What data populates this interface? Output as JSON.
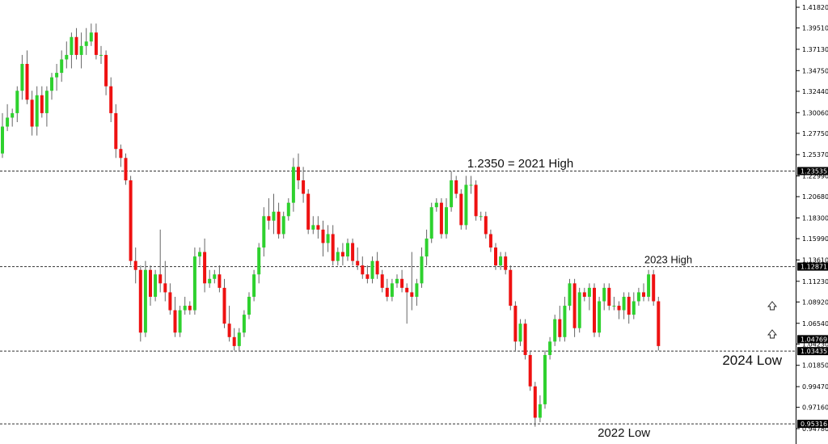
{
  "chart_data": {
    "type": "candlestick",
    "y_ticks": [
      "1.41820",
      "1.39510",
      "1.37130",
      "1.34750",
      "1.32440",
      "1.30060",
      "1.27750",
      "1.25370",
      "1.22990",
      "1.20680",
      "1.18300",
      "1.15990",
      "1.13610",
      "1.11230",
      "1.08920",
      "1.06540",
      "1.04230",
      "1.01850",
      "0.99470",
      "0.97160",
      "0.94780"
    ],
    "ylim": [
      0.9478,
      1.4182
    ],
    "levels": [
      {
        "value": 1.23535,
        "label": "1.23535"
      },
      {
        "value": 1.12871,
        "label": "1.12871"
      },
      {
        "value": 1.03435,
        "label": "1.03435"
      },
      {
        "value": 0.95316,
        "label": "0.95316"
      }
    ],
    "current_price": {
      "value": 1.04769,
      "label": "1.04769"
    },
    "annotations": [
      {
        "text": "1.2350 = 2021 High",
        "price": 1.235,
        "bar": 105
      },
      {
        "text": "2023 High",
        "price": 1.1287,
        "bar": 135
      },
      {
        "text": "2024 Low",
        "price": 1.0344,
        "bar": 152
      },
      {
        "text": "2022 Low",
        "price": 0.9532,
        "bar": 126
      }
    ],
    "colors": {
      "up": "#2ed12e",
      "down": "#ee1111",
      "wick": "#666666",
      "level": "#333333"
    },
    "bars": [
      [
        1.255,
        1.3,
        1.25,
        1.285
      ],
      [
        1.285,
        1.31,
        1.28,
        1.295
      ],
      [
        1.295,
        1.305,
        1.285,
        1.3
      ],
      [
        1.3,
        1.33,
        1.29,
        1.325
      ],
      [
        1.325,
        1.365,
        1.315,
        1.355
      ],
      [
        1.355,
        1.37,
        1.31,
        1.315
      ],
      [
        1.315,
        1.325,
        1.275,
        1.285
      ],
      [
        1.285,
        1.33,
        1.275,
        1.32
      ],
      [
        1.32,
        1.33,
        1.295,
        1.3
      ],
      [
        1.3,
        1.33,
        1.285,
        1.325
      ],
      [
        1.325,
        1.345,
        1.315,
        1.34
      ],
      [
        1.34,
        1.355,
        1.325,
        1.345
      ],
      [
        1.345,
        1.37,
        1.335,
        1.36
      ],
      [
        1.36,
        1.38,
        1.35,
        1.365
      ],
      [
        1.365,
        1.39,
        1.35,
        1.385
      ],
      [
        1.385,
        1.395,
        1.36,
        1.365
      ],
      [
        1.365,
        1.39,
        1.35,
        1.375
      ],
      [
        1.375,
        1.395,
        1.365,
        1.38
      ],
      [
        1.38,
        1.4,
        1.375,
        1.39
      ],
      [
        1.39,
        1.4,
        1.36,
        1.365
      ],
      [
        1.365,
        1.375,
        1.355,
        1.365
      ],
      [
        1.365,
        1.37,
        1.32,
        1.33
      ],
      [
        1.33,
        1.34,
        1.29,
        1.3
      ],
      [
        1.3,
        1.31,
        1.25,
        1.26
      ],
      [
        1.26,
        1.265,
        1.24,
        1.25
      ],
      [
        1.25,
        1.255,
        1.22,
        1.225
      ],
      [
        1.225,
        1.23,
        1.13,
        1.135
      ],
      [
        1.135,
        1.15,
        1.11,
        1.125
      ],
      [
        1.125,
        1.13,
        1.045,
        1.055
      ],
      [
        1.055,
        1.135,
        1.05,
        1.125
      ],
      [
        1.125,
        1.13,
        1.085,
        1.095
      ],
      [
        1.095,
        1.125,
        1.09,
        1.12
      ],
      [
        1.12,
        1.17,
        1.1,
        1.11
      ],
      [
        1.11,
        1.135,
        1.09,
        1.1
      ],
      [
        1.1,
        1.11,
        1.075,
        1.08
      ],
      [
        1.08,
        1.095,
        1.05,
        1.055
      ],
      [
        1.055,
        1.085,
        1.05,
        1.08
      ],
      [
        1.08,
        1.095,
        1.075,
        1.085
      ],
      [
        1.085,
        1.09,
        1.075,
        1.08
      ],
      [
        1.08,
        1.15,
        1.075,
        1.14
      ],
      [
        1.14,
        1.15,
        1.13,
        1.145
      ],
      [
        1.145,
        1.16,
        1.1,
        1.11
      ],
      [
        1.11,
        1.125,
        1.105,
        1.115
      ],
      [
        1.115,
        1.125,
        1.11,
        1.12
      ],
      [
        1.12,
        1.13,
        1.1,
        1.105
      ],
      [
        1.105,
        1.115,
        1.06,
        1.065
      ],
      [
        1.065,
        1.085,
        1.045,
        1.05
      ],
      [
        1.05,
        1.06,
        1.035,
        1.04
      ],
      [
        1.04,
        1.06,
        1.035,
        1.055
      ],
      [
        1.055,
        1.08,
        1.05,
        1.075
      ],
      [
        1.075,
        1.1,
        1.07,
        1.095
      ],
      [
        1.095,
        1.125,
        1.09,
        1.12
      ],
      [
        1.12,
        1.155,
        1.11,
        1.15
      ],
      [
        1.15,
        1.195,
        1.14,
        1.185
      ],
      [
        1.185,
        1.205,
        1.17,
        1.18
      ],
      [
        1.18,
        1.21,
        1.165,
        1.19
      ],
      [
        1.19,
        1.2,
        1.16,
        1.165
      ],
      [
        1.165,
        1.19,
        1.16,
        1.185
      ],
      [
        1.185,
        1.205,
        1.18,
        1.2
      ],
      [
        1.2,
        1.25,
        1.19,
        1.24
      ],
      [
        1.24,
        1.255,
        1.215,
        1.225
      ],
      [
        1.225,
        1.24,
        1.2,
        1.21
      ],
      [
        1.21,
        1.215,
        1.165,
        1.17
      ],
      [
        1.17,
        1.185,
        1.165,
        1.175
      ],
      [
        1.175,
        1.185,
        1.16,
        1.17
      ],
      [
        1.17,
        1.18,
        1.14,
        1.155
      ],
      [
        1.155,
        1.175,
        1.145,
        1.165
      ],
      [
        1.165,
        1.175,
        1.13,
        1.135
      ],
      [
        1.135,
        1.15,
        1.13,
        1.145
      ],
      [
        1.145,
        1.155,
        1.13,
        1.14
      ],
      [
        1.14,
        1.16,
        1.135,
        1.155
      ],
      [
        1.155,
        1.16,
        1.13,
        1.135
      ],
      [
        1.135,
        1.15,
        1.125,
        1.13
      ],
      [
        1.13,
        1.14,
        1.115,
        1.12
      ],
      [
        1.12,
        1.13,
        1.11,
        1.115
      ],
      [
        1.115,
        1.14,
        1.11,
        1.135
      ],
      [
        1.135,
        1.145,
        1.115,
        1.12
      ],
      [
        1.12,
        1.125,
        1.1,
        1.105
      ],
      [
        1.105,
        1.115,
        1.09,
        1.095
      ],
      [
        1.095,
        1.115,
        1.09,
        1.11
      ],
      [
        1.11,
        1.12,
        1.105,
        1.115
      ],
      [
        1.115,
        1.125,
        1.1,
        1.105
      ],
      [
        1.105,
        1.11,
        1.065,
        1.1
      ],
      [
        1.1,
        1.145,
        1.08,
        1.095
      ],
      [
        1.095,
        1.115,
        1.085,
        1.11
      ],
      [
        1.11,
        1.15,
        1.105,
        1.14
      ],
      [
        1.14,
        1.17,
        1.13,
        1.16
      ],
      [
        1.16,
        1.2,
        1.155,
        1.195
      ],
      [
        1.195,
        1.205,
        1.19,
        1.2
      ],
      [
        1.2,
        1.205,
        1.16,
        1.165
      ],
      [
        1.165,
        1.205,
        1.16,
        1.195
      ],
      [
        1.195,
        1.235,
        1.19,
        1.225
      ],
      [
        1.225,
        1.23,
        1.205,
        1.21
      ],
      [
        1.21,
        1.215,
        1.17,
        1.175
      ],
      [
        1.175,
        1.23,
        1.17,
        1.22
      ],
      [
        1.22,
        1.23,
        1.21,
        1.22
      ],
      [
        1.22,
        1.225,
        1.18,
        1.185
      ],
      [
        1.185,
        1.19,
        1.18,
        1.185
      ],
      [
        1.185,
        1.19,
        1.16,
        1.165
      ],
      [
        1.165,
        1.17,
        1.145,
        1.15
      ],
      [
        1.15,
        1.155,
        1.125,
        1.13
      ],
      [
        1.13,
        1.145,
        1.125,
        1.14
      ],
      [
        1.14,
        1.145,
        1.12,
        1.125
      ],
      [
        1.125,
        1.13,
        1.08,
        1.085
      ],
      [
        1.085,
        1.09,
        1.035,
        1.045
      ],
      [
        1.045,
        1.07,
        1.04,
        1.065
      ],
      [
        1.065,
        1.07,
        1.025,
        1.03
      ],
      [
        1.03,
        1.035,
        0.99,
        0.995
      ],
      [
        0.995,
        1.0,
        0.95,
        0.96
      ],
      [
        0.96,
        0.985,
        0.955,
        0.975
      ],
      [
        0.975,
        1.035,
        0.97,
        1.03
      ],
      [
        1.03,
        1.05,
        1.025,
        1.045
      ],
      [
        1.045,
        1.075,
        1.04,
        1.07
      ],
      [
        1.07,
        1.085,
        1.045,
        1.05
      ],
      [
        1.05,
        1.095,
        1.045,
        1.085
      ],
      [
        1.085,
        1.115,
        1.08,
        1.11
      ],
      [
        1.11,
        1.115,
        1.05,
        1.06
      ],
      [
        1.06,
        1.105,
        1.055,
        1.1
      ],
      [
        1.1,
        1.105,
        1.09,
        1.095
      ],
      [
        1.095,
        1.11,
        1.08,
        1.105
      ],
      [
        1.105,
        1.11,
        1.05,
        1.055
      ],
      [
        1.055,
        1.095,
        1.05,
        1.09
      ],
      [
        1.09,
        1.11,
        1.08,
        1.105
      ],
      [
        1.105,
        1.11,
        1.08,
        1.085
      ],
      [
        1.085,
        1.095,
        1.08,
        1.085
      ],
      [
        1.085,
        1.09,
        1.07,
        1.08
      ],
      [
        1.08,
        1.1,
        1.07,
        1.095
      ],
      [
        1.095,
        1.1,
        1.065,
        1.075
      ],
      [
        1.075,
        1.1,
        1.07,
        1.09
      ],
      [
        1.09,
        1.105,
        1.085,
        1.1
      ],
      [
        1.1,
        1.11,
        1.09,
        1.095
      ],
      [
        1.095,
        1.125,
        1.09,
        1.12
      ],
      [
        1.12,
        1.125,
        1.085,
        1.09
      ],
      [
        1.09,
        1.095,
        1.035,
        1.04
      ]
    ]
  }
}
